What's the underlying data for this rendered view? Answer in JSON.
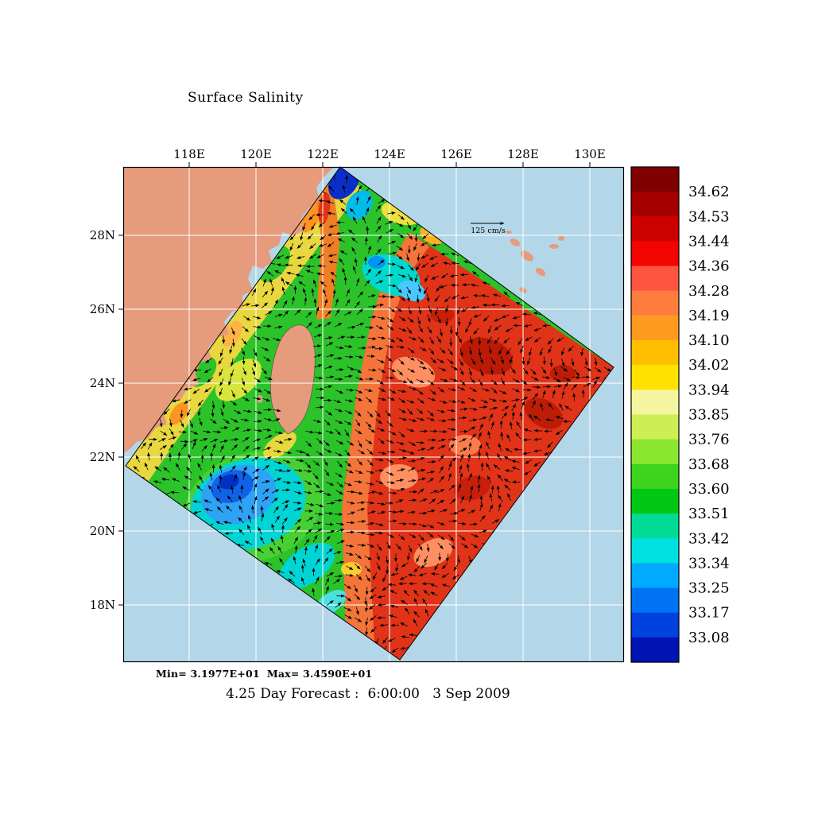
{
  "title": "Surface Salinity",
  "axes": {
    "lon_labels": [
      "118E",
      "120E",
      "122E",
      "124E",
      "126E",
      "128E",
      "130E"
    ],
    "lat_labels": [
      "28N",
      "26N",
      "24N",
      "22N",
      "20N",
      "18N"
    ]
  },
  "colorbar": {
    "tick_labels": [
      "34.62",
      "34.53",
      "34.44",
      "34.36",
      "34.28",
      "34.19",
      "34.10",
      "34.02",
      "33.94",
      "33.85",
      "33.76",
      "33.68",
      "33.60",
      "33.51",
      "33.42",
      "33.34",
      "33.25",
      "33.17",
      "33.08"
    ],
    "colors_top_to_bottom": [
      "#7f0000",
      "#a50000",
      "#cd0000",
      "#f20400",
      "#ff5540",
      "#ff7d3c",
      "#ff9a20",
      "#ffbe00",
      "#ffe200",
      "#f5f5a0",
      "#cdee55",
      "#8ae62e",
      "#3cd41c",
      "#00c814",
      "#00dc96",
      "#00e0e0",
      "#00aaff",
      "#0073f5",
      "#0041e0",
      "#0014b4"
    ]
  },
  "reference_vector_label": "125 cm/s",
  "footer": {
    "stats": "Min= 3.1977E+01  Max= 3.4590E+01",
    "caption": "4.25 Day Forecast :  6:00:00   3 Sep 2009"
  },
  "colors": {
    "ocean": "#b3d7e8",
    "land": "#e69b7c",
    "grid": "#ffffff",
    "frame": "#000000",
    "vectors": "#000000"
  },
  "chart_data": {
    "type": "heatmap",
    "title": "Surface Salinity",
    "x_tick_labels": [
      "118E",
      "120E",
      "122E",
      "124E",
      "126E",
      "128E",
      "130E"
    ],
    "y_tick_labels": [
      "28N",
      "26N",
      "24N",
      "22N",
      "20N",
      "18N"
    ],
    "colorbar_ticks": [
      34.62,
      34.53,
      34.44,
      34.36,
      34.28,
      34.19,
      34.1,
      34.02,
      33.94,
      33.85,
      33.76,
      33.68,
      33.6,
      33.51,
      33.42,
      33.34,
      33.25,
      33.17,
      33.08
    ],
    "field_min": 31.977,
    "field_max": 34.59,
    "reference_vector": "125 cm/s",
    "caption": "4.25 Day Forecast :  6:00:00   3 Sep 2009",
    "legend_position": "right",
    "grid": true
  }
}
